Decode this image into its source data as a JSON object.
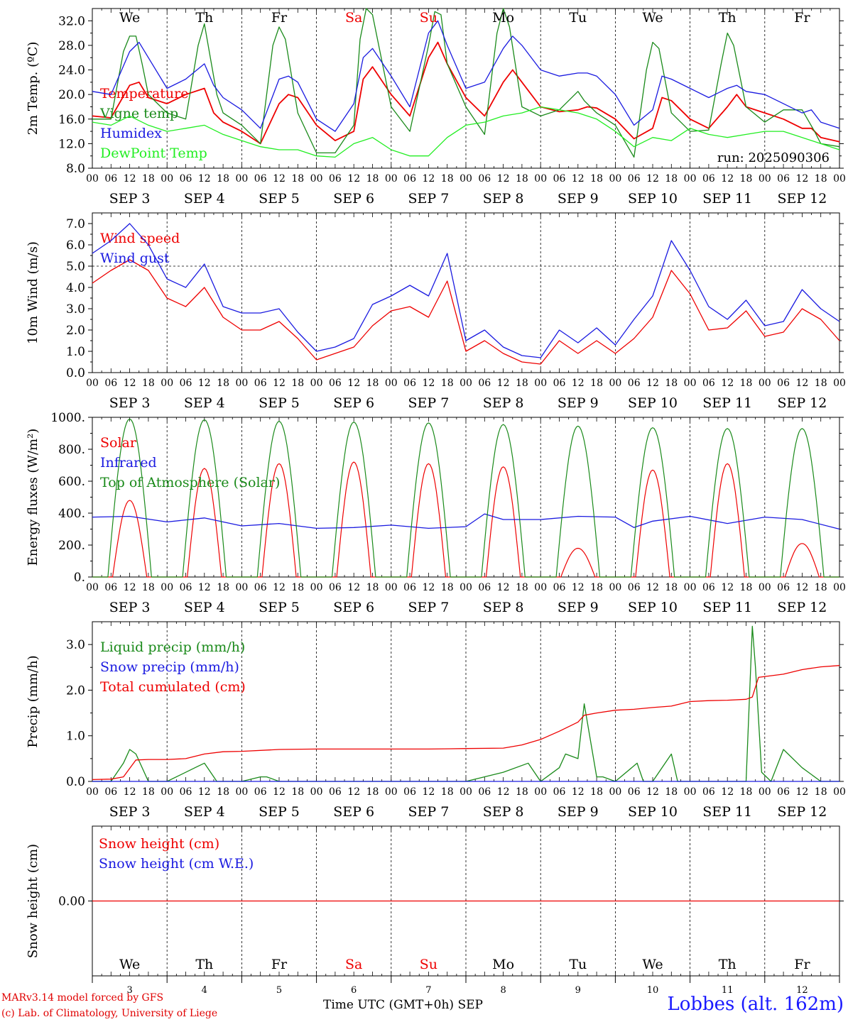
{
  "chart_data": [
    {
      "type": "line",
      "ylabel": "2m Temp. (ºC)",
      "ylim": [
        8,
        34
      ],
      "yticks": [
        "8.0",
        "12.0",
        "16.0",
        "20.0",
        "24.0",
        "28.0",
        "32.0"
      ],
      "ytick_values": [
        8,
        12,
        16,
        20,
        24,
        28,
        32
      ],
      "run_label": "run: 2025090306",
      "days": [
        "We",
        "Th",
        "Fr",
        "Sa",
        "Su",
        "Mo",
        "Tu",
        "We",
        "Th",
        "Fr"
      ],
      "weekend_days": [
        "Sa",
        "Su"
      ],
      "x_hours_label": [
        "00",
        "06",
        "12",
        "18"
      ],
      "date_labels": [
        "SEP  3",
        "SEP  4",
        "SEP  5",
        "SEP  6",
        "SEP  7",
        "SEP  8",
        "SEP  9",
        "SEP 10",
        "SEP 11",
        "SEP 12"
      ],
      "series": [
        {
          "name": "Temperature",
          "color": "#ee0000",
          "x": [
            0,
            6,
            12,
            15,
            18,
            24,
            30,
            36,
            39,
            42,
            48,
            54,
            60,
            63,
            66,
            72,
            78,
            84,
            87,
            90,
            96,
            102,
            108,
            111,
            114,
            120,
            126,
            132,
            135,
            138,
            144,
            150,
            156,
            159,
            162,
            168,
            174,
            180,
            183,
            186,
            192,
            198,
            204,
            207,
            210,
            216,
            222,
            228,
            231,
            234,
            240
          ],
          "values": [
            16.5,
            16.2,
            21.5,
            22.0,
            19.5,
            18.5,
            20.0,
            21.0,
            17.0,
            15.5,
            14.0,
            12.0,
            18.5,
            20.0,
            19.5,
            15.0,
            12.5,
            14.0,
            22.5,
            24.5,
            20.0,
            16.5,
            26.0,
            28.5,
            25.0,
            19.5,
            16.5,
            22.0,
            24.0,
            22.0,
            18.0,
            17.2,
            17.5,
            18.0,
            17.8,
            16.0,
            12.8,
            14.5,
            19.5,
            19.0,
            16.0,
            14.5,
            18.0,
            20.0,
            18.0,
            17.0,
            16.0,
            14.5,
            14.5,
            13.0,
            12.3
          ]
        },
        {
          "name": "Vigne temp",
          "color": "#1a8a1a",
          "x": [
            0,
            6,
            10,
            12,
            14,
            16,
            18,
            24,
            30,
            34,
            36,
            40,
            42,
            48,
            54,
            58,
            60,
            62,
            66,
            72,
            78,
            84,
            86,
            88,
            90,
            96,
            102,
            108,
            110,
            112,
            114,
            120,
            126,
            130,
            132,
            134,
            138,
            144,
            150,
            156,
            158,
            160,
            162,
            168,
            174,
            178,
            180,
            182,
            186,
            192,
            198,
            202,
            204,
            206,
            210,
            216,
            222,
            228,
            232,
            234,
            240
          ],
          "values": [
            16.0,
            16.0,
            27.0,
            29.5,
            29.5,
            25.0,
            20.0,
            17.0,
            16.0,
            28.0,
            31.5,
            20.0,
            17.0,
            15.0,
            12.0,
            28.0,
            31.0,
            29.0,
            17.0,
            10.5,
            10.5,
            15.0,
            29.0,
            34.0,
            33.0,
            18.0,
            14.0,
            28.0,
            33.5,
            33.0,
            25.0,
            18.0,
            13.5,
            30.0,
            34.0,
            31.0,
            18.0,
            16.5,
            17.5,
            20.5,
            19.0,
            18.0,
            17.0,
            15.0,
            9.8,
            24.0,
            28.5,
            27.5,
            17.0,
            14.0,
            14.2,
            25.0,
            30.0,
            28.0,
            18.0,
            15.5,
            17.5,
            17.5,
            14.0,
            12.0,
            11.5
          ]
        },
        {
          "name": "Humidex",
          "color": "#1a1ae0",
          "x": [
            0,
            6,
            12,
            15,
            18,
            24,
            30,
            36,
            39,
            42,
            48,
            54,
            60,
            63,
            66,
            72,
            78,
            84,
            87,
            90,
            96,
            102,
            108,
            111,
            114,
            120,
            126,
            132,
            135,
            138,
            144,
            150,
            156,
            159,
            162,
            168,
            174,
            180,
            183,
            186,
            192,
            198,
            204,
            207,
            210,
            216,
            222,
            228,
            231,
            234,
            240
          ],
          "values": [
            20.5,
            20.0,
            27.0,
            28.5,
            26.0,
            21.0,
            22.5,
            25.0,
            21.5,
            19.5,
            17.5,
            14.5,
            22.5,
            23.0,
            22.0,
            16.0,
            14.0,
            18.5,
            26.0,
            27.5,
            23.0,
            18.0,
            30.0,
            32.0,
            28.0,
            21.0,
            22.0,
            27.5,
            29.5,
            28.0,
            24.0,
            23.0,
            23.5,
            23.5,
            23.0,
            20.0,
            15.0,
            17.5,
            23.0,
            22.5,
            21.0,
            19.5,
            21.0,
            21.5,
            20.5,
            20.0,
            18.5,
            17.0,
            17.5,
            15.5,
            14.5
          ]
        },
        {
          "name": "DewPoint Temp",
          "color": "#22ee22",
          "x": [
            0,
            6,
            12,
            18,
            24,
            30,
            36,
            42,
            48,
            54,
            60,
            66,
            72,
            78,
            84,
            90,
            96,
            102,
            108,
            114,
            120,
            126,
            132,
            138,
            144,
            150,
            156,
            162,
            168,
            174,
            180,
            186,
            192,
            198,
            204,
            210,
            216,
            222,
            228,
            234,
            240
          ],
          "values": [
            15.5,
            15.0,
            16.5,
            15.0,
            14.0,
            14.5,
            15.0,
            13.5,
            12.5,
            11.5,
            11.0,
            11.0,
            10.0,
            9.8,
            12.0,
            13.0,
            11.0,
            10.0,
            10.0,
            13.0,
            15.0,
            15.5,
            16.5,
            17.0,
            18.0,
            17.5,
            17.0,
            16.0,
            14.0,
            11.5,
            13.0,
            12.5,
            14.5,
            13.5,
            13.0,
            13.5,
            14.0,
            14.0,
            13.0,
            12.0,
            11.0
          ]
        }
      ]
    },
    {
      "type": "line",
      "ylabel": "10m Wind (m/s)",
      "ylim": [
        0,
        7.5
      ],
      "yticks": [
        "0.0",
        "1.0",
        "2.0",
        "3.0",
        "4.0",
        "5.0",
        "6.0",
        "7.0"
      ],
      "ytick_values": [
        0,
        1,
        2,
        3,
        4,
        5,
        6,
        7
      ],
      "reference_line": 5.0,
      "date_labels": [
        "SEP  3",
        "SEP  4",
        "SEP  5",
        "SEP  6",
        "SEP  7",
        "SEP  8",
        "SEP  9",
        "SEP 10",
        "SEP 11",
        "SEP 12"
      ],
      "series": [
        {
          "name": "Wind speed",
          "color": "#ee0000",
          "x": [
            0,
            6,
            12,
            18,
            24,
            30,
            36,
            42,
            48,
            54,
            60,
            66,
            72,
            78,
            84,
            90,
            96,
            102,
            108,
            114,
            120,
            126,
            132,
            138,
            144,
            150,
            156,
            162,
            168,
            174,
            180,
            186,
            192,
            198,
            204,
            210,
            216,
            222,
            228,
            234,
            240
          ],
          "values": [
            4.2,
            4.8,
            5.3,
            4.8,
            3.5,
            3.1,
            4.0,
            2.6,
            2.0,
            2.0,
            2.4,
            1.6,
            0.6,
            0.9,
            1.2,
            2.2,
            2.9,
            3.1,
            2.6,
            4.3,
            1.0,
            1.5,
            0.9,
            0.5,
            0.4,
            1.5,
            0.9,
            1.5,
            0.9,
            1.6,
            2.6,
            4.8,
            3.7,
            2.0,
            2.1,
            2.9,
            1.7,
            1.9,
            3.0,
            2.5,
            1.5
          ]
        },
        {
          "name": "Wind gust",
          "color": "#1a1ae0",
          "x": [
            0,
            6,
            12,
            18,
            24,
            30,
            36,
            42,
            48,
            54,
            60,
            66,
            72,
            78,
            84,
            90,
            96,
            102,
            108,
            114,
            120,
            126,
            132,
            138,
            144,
            150,
            156,
            162,
            168,
            174,
            180,
            186,
            192,
            198,
            204,
            210,
            216,
            222,
            228,
            234,
            240
          ],
          "values": [
            5.6,
            6.2,
            7.0,
            6.0,
            4.4,
            4.0,
            5.1,
            3.1,
            2.8,
            2.8,
            3.0,
            1.9,
            1.0,
            1.2,
            1.6,
            3.2,
            3.6,
            4.1,
            3.6,
            5.6,
            1.5,
            2.0,
            1.2,
            0.8,
            0.7,
            2.0,
            1.4,
            2.1,
            1.3,
            2.5,
            3.6,
            6.2,
            4.8,
            3.1,
            2.5,
            3.4,
            2.2,
            2.4,
            3.9,
            3.0,
            2.4
          ]
        }
      ]
    },
    {
      "type": "line",
      "ylabel": "Energy fluxes (W/m²)",
      "ylim": [
        0,
        1000
      ],
      "yticks": [
        "0.",
        "200.",
        "400.",
        "600.",
        "800.",
        "1000."
      ],
      "ytick_values": [
        0,
        200,
        400,
        600,
        800,
        1000
      ],
      "date_labels": [
        "SEP  3",
        "SEP  4",
        "SEP  5",
        "SEP  6",
        "SEP  7",
        "SEP  8",
        "SEP  9",
        "SEP 10",
        "SEP 11",
        "SEP 12"
      ],
      "daily_peaks": {
        "Solar": [
          480,
          680,
          710,
          720,
          710,
          690,
          180,
          670,
          710,
          210
        ],
        "Top of Atmosphere (Solar)": [
          990,
          985,
          975,
          970,
          965,
          955,
          945,
          935,
          930,
          930
        ]
      },
      "series": [
        {
          "name": "Solar",
          "color": "#ee0000"
        },
        {
          "name": "Infrared",
          "color": "#1a1ae0",
          "x": [
            0,
            12,
            24,
            36,
            48,
            60,
            72,
            84,
            96,
            108,
            120,
            126,
            132,
            144,
            156,
            168,
            174,
            180,
            192,
            204,
            216,
            228,
            240
          ],
          "values": [
            375,
            380,
            345,
            370,
            320,
            335,
            305,
            310,
            325,
            305,
            315,
            395,
            360,
            360,
            380,
            375,
            310,
            350,
            380,
            335,
            375,
            360,
            300
          ]
        },
        {
          "name": "Top of Atmosphere (Solar)",
          "color": "#1a8a1a"
        }
      ]
    },
    {
      "type": "line",
      "ylabel": "Precip (mm/h)",
      "ylim": [
        0,
        3.5
      ],
      "yticks": [
        "0.0",
        "1.0",
        "2.0",
        "3.0"
      ],
      "ytick_values": [
        0,
        1,
        2,
        3
      ],
      "date_labels": [
        "SEP  3",
        "SEP  4",
        "SEP  5",
        "SEP  6",
        "SEP  7",
        "SEP  8",
        "SEP  9",
        "SEP 10",
        "SEP 11",
        "SEP 12"
      ],
      "series": [
        {
          "name": "Liquid precip (mm/h)",
          "color": "#1a8a1a",
          "x": [
            0,
            6,
            10,
            12,
            14,
            18,
            24,
            33,
            36,
            40,
            48,
            54,
            56,
            60,
            72,
            120,
            132,
            140,
            144,
            150,
            152,
            156,
            158,
            162,
            164,
            168,
            175,
            177,
            180,
            186,
            188,
            190,
            192,
            198,
            204,
            210,
            212,
            213,
            215,
            218,
            222,
            228,
            230,
            234,
            240
          ],
          "values": [
            0.0,
            0.0,
            0.4,
            0.7,
            0.6,
            0.0,
            0.0,
            0.3,
            0.4,
            0.0,
            0.0,
            0.1,
            0.1,
            0.0,
            0.0,
            0.0,
            0.2,
            0.4,
            0.0,
            0.3,
            0.6,
            0.5,
            1.7,
            0.1,
            0.1,
            0.0,
            0.4,
            0.0,
            0.0,
            0.6,
            0.0,
            0.0,
            0.0,
            0.0,
            0.0,
            0.0,
            3.4,
            2.5,
            0.2,
            0.0,
            0.7,
            0.3,
            0.2,
            0.0,
            0.0
          ]
        },
        {
          "name": "Snow precip (mm/h)",
          "color": "#1a1ae0",
          "x": [
            0,
            240
          ],
          "values": [
            0,
            0
          ]
        },
        {
          "name": "Total cumulated (cm)",
          "color": "#ee0000",
          "x": [
            0,
            6,
            10,
            14,
            18,
            24,
            30,
            36,
            42,
            48,
            60,
            72,
            84,
            96,
            108,
            120,
            132,
            138,
            144,
            150,
            156,
            158,
            162,
            168,
            174,
            180,
            186,
            192,
            198,
            204,
            210,
            212,
            214,
            222,
            228,
            234,
            240
          ],
          "values": [
            0.04,
            0.05,
            0.1,
            0.47,
            0.48,
            0.48,
            0.5,
            0.6,
            0.65,
            0.66,
            0.7,
            0.71,
            0.71,
            0.71,
            0.71,
            0.72,
            0.73,
            0.8,
            0.92,
            1.1,
            1.3,
            1.45,
            1.5,
            1.56,
            1.58,
            1.62,
            1.65,
            1.75,
            1.77,
            1.78,
            1.8,
            1.85,
            2.28,
            2.35,
            2.45,
            2.51,
            2.54
          ]
        }
      ]
    },
    {
      "type": "line",
      "ylabel": "Snow height (cm)",
      "ylim": [
        -1,
        1
      ],
      "yticks": [
        "0.00"
      ],
      "ytick_values": [
        0
      ],
      "x_day_numbers": [
        "3",
        "4",
        "5",
        "6",
        "7",
        "8",
        "9",
        "10",
        "11",
        "12"
      ],
      "series": [
        {
          "name": "Snow height (cm)",
          "color": "#ee0000",
          "x": [
            0,
            240
          ],
          "values": [
            0,
            0
          ]
        },
        {
          "name": "Snow height (cm W.E.)",
          "color": "#1a1ae0"
        }
      ]
    }
  ],
  "footer": {
    "credit_line1": "MARv3.14 model forced by GFS",
    "credit_line2": "(c) Lab. of Climatology, University of Liege",
    "x_axis_title": "Time UTC (GMT+0h)",
    "x_axis_month": "SEP",
    "station": "Lobbes (alt. 162m)"
  }
}
